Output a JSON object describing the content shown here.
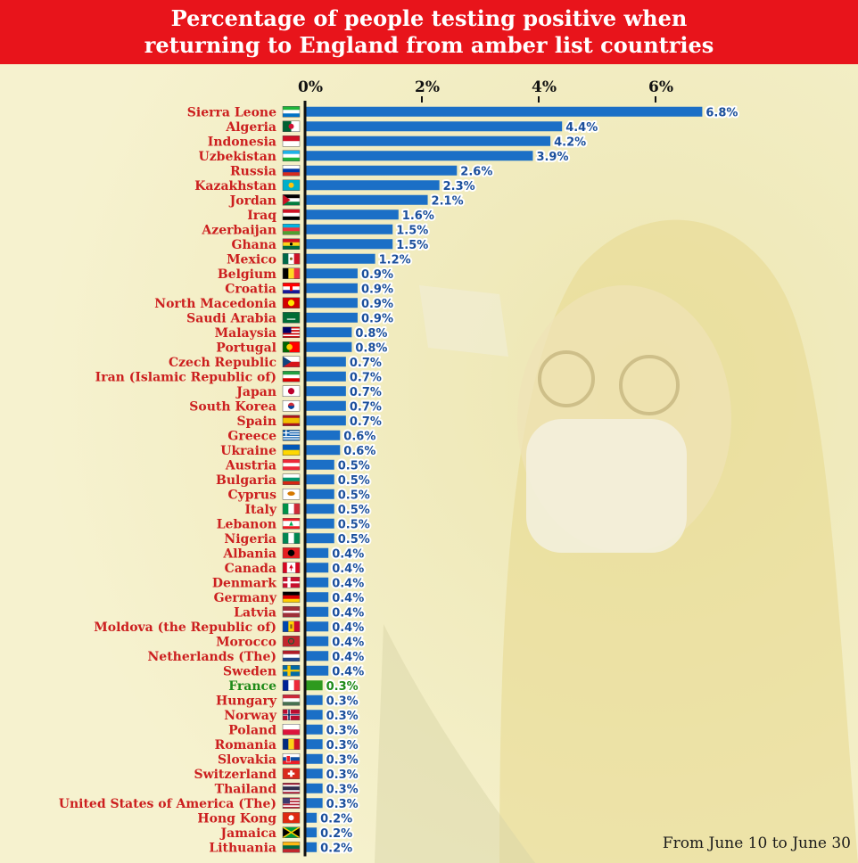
{
  "title": {
    "line1": "Percentage of people testing positive when",
    "line2": "returning to England from amber list countries"
  },
  "footnote": "From June 10 to June 30",
  "colors": {
    "title_bg": "#e8141b",
    "bar": "#1b6fc6",
    "bar_highlight": "#2e9a1e",
    "label": "#cc1f1f",
    "label_highlight": "#1e8a18",
    "value_text": "#1b4f9c"
  },
  "chart_data": {
    "type": "bar",
    "orientation": "horizontal",
    "highlight": "France",
    "xlim": [
      0,
      6.8
    ],
    "xticks": [
      0,
      2,
      4,
      6
    ],
    "xtick_labels": [
      "0%",
      "2%",
      "4%",
      "6%"
    ],
    "grid": false,
    "categories": [
      {
        "name": "Sierra Leone",
        "value": 6.8,
        "label": "6.8%",
        "flag": "sierra-leone-flag"
      },
      {
        "name": "Algeria",
        "value": 4.4,
        "label": "4.4%",
        "flag": "algeria-flag"
      },
      {
        "name": "Indonesia",
        "value": 4.2,
        "label": "4.2%",
        "flag": "indonesia-flag"
      },
      {
        "name": "Uzbekistan",
        "value": 3.9,
        "label": "3.9%",
        "flag": "uzbekistan-flag"
      },
      {
        "name": "Russia",
        "value": 2.6,
        "label": "2.6%",
        "flag": "russia-flag"
      },
      {
        "name": "Kazakhstan",
        "value": 2.3,
        "label": "2.3%",
        "flag": "kazakhstan-flag"
      },
      {
        "name": "Jordan",
        "value": 2.1,
        "label": "2.1%",
        "flag": "jordan-flag"
      },
      {
        "name": "Iraq",
        "value": 1.6,
        "label": "1.6%",
        "flag": "iraq-flag"
      },
      {
        "name": "Azerbaijan",
        "value": 1.5,
        "label": "1.5%",
        "flag": "azerbaijan-flag"
      },
      {
        "name": "Ghana",
        "value": 1.5,
        "label": "1.5%",
        "flag": "ghana-flag"
      },
      {
        "name": "Mexico",
        "value": 1.2,
        "label": "1.2%",
        "flag": "mexico-flag"
      },
      {
        "name": "Belgium",
        "value": 0.9,
        "label": "0.9%",
        "flag": "belgium-flag"
      },
      {
        "name": "Croatia",
        "value": 0.9,
        "label": "0.9%",
        "flag": "croatia-flag"
      },
      {
        "name": "North Macedonia",
        "value": 0.9,
        "label": "0.9%",
        "flag": "north-macedonia-flag"
      },
      {
        "name": "Saudi Arabia",
        "value": 0.9,
        "label": "0.9%",
        "flag": "saudi-arabia-flag"
      },
      {
        "name": "Malaysia",
        "value": 0.8,
        "label": "0.8%",
        "flag": "malaysia-flag"
      },
      {
        "name": "Portugal",
        "value": 0.8,
        "label": "0.8%",
        "flag": "portugal-flag"
      },
      {
        "name": "Czech Republic",
        "value": 0.7,
        "label": "0.7%",
        "flag": "czech-republic-flag"
      },
      {
        "name": "Iran (Islamic Republic of)",
        "value": 0.7,
        "label": "0.7%",
        "flag": "iran-flag"
      },
      {
        "name": "Japan",
        "value": 0.7,
        "label": "0.7%",
        "flag": "japan-flag"
      },
      {
        "name": "South Korea",
        "value": 0.7,
        "label": "0.7%",
        "flag": "south-korea-flag"
      },
      {
        "name": "Spain",
        "value": 0.7,
        "label": "0.7%",
        "flag": "spain-flag"
      },
      {
        "name": "Greece",
        "value": 0.6,
        "label": "0.6%",
        "flag": "greece-flag"
      },
      {
        "name": "Ukraine",
        "value": 0.6,
        "label": "0.6%",
        "flag": "ukraine-flag"
      },
      {
        "name": "Austria",
        "value": 0.5,
        "label": "0.5%",
        "flag": "austria-flag"
      },
      {
        "name": "Bulgaria",
        "value": 0.5,
        "label": "0.5%",
        "flag": "bulgaria-flag"
      },
      {
        "name": "Cyprus",
        "value": 0.5,
        "label": "0.5%",
        "flag": "cyprus-flag"
      },
      {
        "name": "Italy",
        "value": 0.5,
        "label": "0.5%",
        "flag": "italy-flag"
      },
      {
        "name": "Lebanon",
        "value": 0.5,
        "label": "0.5%",
        "flag": "lebanon-flag"
      },
      {
        "name": "Nigeria",
        "value": 0.5,
        "label": "0.5%",
        "flag": "nigeria-flag"
      },
      {
        "name": "Albania",
        "value": 0.4,
        "label": "0.4%",
        "flag": "albania-flag"
      },
      {
        "name": "Canada",
        "value": 0.4,
        "label": "0.4%",
        "flag": "canada-flag"
      },
      {
        "name": "Denmark",
        "value": 0.4,
        "label": "0.4%",
        "flag": "denmark-flag"
      },
      {
        "name": "Germany",
        "value": 0.4,
        "label": "0.4%",
        "flag": "germany-flag"
      },
      {
        "name": "Latvia",
        "value": 0.4,
        "label": "0.4%",
        "flag": "latvia-flag"
      },
      {
        "name": "Moldova (the Republic of)",
        "value": 0.4,
        "label": "0.4%",
        "flag": "moldova-flag"
      },
      {
        "name": "Morocco",
        "value": 0.4,
        "label": "0.4%",
        "flag": "morocco-flag"
      },
      {
        "name": "Netherlands (The)",
        "value": 0.4,
        "label": "0.4%",
        "flag": "netherlands-flag"
      },
      {
        "name": "Sweden",
        "value": 0.4,
        "label": "0.4%",
        "flag": "sweden-flag"
      },
      {
        "name": "France",
        "value": 0.3,
        "label": "0.3%",
        "flag": "france-flag"
      },
      {
        "name": "Hungary",
        "value": 0.3,
        "label": "0.3%",
        "flag": "hungary-flag"
      },
      {
        "name": "Norway",
        "value": 0.3,
        "label": "0.3%",
        "flag": "norway-flag"
      },
      {
        "name": "Poland",
        "value": 0.3,
        "label": "0.3%",
        "flag": "poland-flag"
      },
      {
        "name": "Romania",
        "value": 0.3,
        "label": "0.3%",
        "flag": "romania-flag"
      },
      {
        "name": "Slovakia",
        "value": 0.3,
        "label": "0.3%",
        "flag": "slovakia-flag"
      },
      {
        "name": "Switzerland",
        "value": 0.3,
        "label": "0.3%",
        "flag": "switzerland-flag"
      },
      {
        "name": "Thailand",
        "value": 0.3,
        "label": "0.3%",
        "flag": "thailand-flag"
      },
      {
        "name": "United States of America (The)",
        "value": 0.3,
        "label": "0.3%",
        "flag": "usa-flag"
      },
      {
        "name": "Hong Kong",
        "value": 0.2,
        "label": "0.2%",
        "flag": "hong-kong-flag"
      },
      {
        "name": "Jamaica",
        "value": 0.2,
        "label": "0.2%",
        "flag": "jamaica-flag"
      },
      {
        "name": "Lithuania",
        "value": 0.2,
        "label": "0.2%",
        "flag": "lithuania-flag"
      }
    ]
  }
}
